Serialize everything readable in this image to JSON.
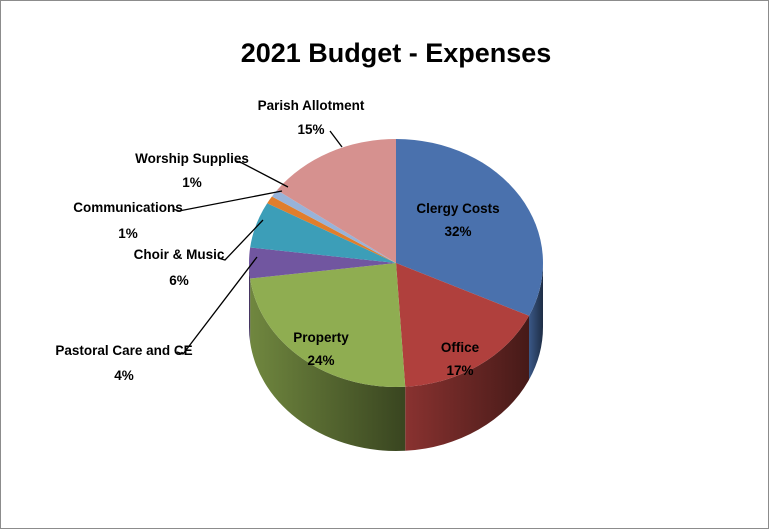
{
  "chart_data": {
    "type": "pie",
    "variant": "3d",
    "title": "2021 Budget - Expenses",
    "legend": "none",
    "slices": [
      {
        "name": "Clergy Costs",
        "pct_label": "32%",
        "value": 32,
        "color": "#4a71ad",
        "label_placement": "inside"
      },
      {
        "name": "Office",
        "pct_label": "17%",
        "value": 17,
        "color": "#b0403d",
        "label_placement": "inside"
      },
      {
        "name": "Property",
        "pct_label": "24%",
        "value": 24,
        "color": "#8fad51",
        "label_placement": "inside"
      },
      {
        "name": "Pastoral Care and CE",
        "pct_label": "4%",
        "value": 4,
        "color": "#7156a0",
        "label_placement": "outside"
      },
      {
        "name": "Choir & Music",
        "pct_label": "6%",
        "value": 6,
        "color": "#3c9eb8",
        "label_placement": "outside"
      },
      {
        "name": "Communications",
        "pct_label": "1%",
        "value": 1,
        "color": "#e07e2c",
        "label_placement": "outside"
      },
      {
        "name": "Worship Supplies",
        "pct_label": "1%",
        "value": 1,
        "color": "#98b3d9",
        "label_placement": "outside"
      },
      {
        "name": "Parish Allotment",
        "pct_label": "15%",
        "value": 15,
        "color": "#d6918f",
        "label_placement": "outside"
      }
    ]
  }
}
